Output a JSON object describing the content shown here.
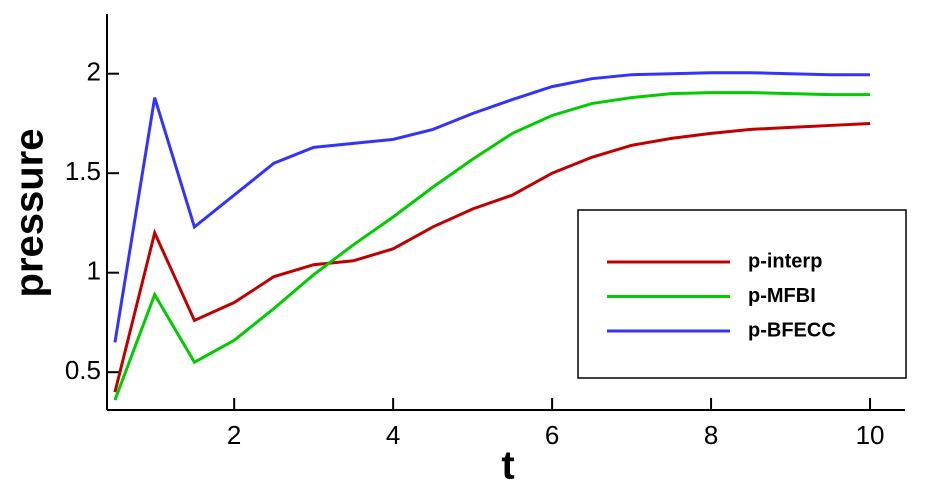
{
  "chart_data": {
    "type": "line",
    "x_label": "t",
    "y_label": "pressure",
    "x": [
      0.5,
      1,
      1.5,
      2,
      2.5,
      3,
      3.5,
      4,
      4.5,
      5,
      5.5,
      6,
      6.5,
      7,
      7.5,
      8,
      8.5,
      9,
      9.5,
      10
    ],
    "series": [
      {
        "name": "p-interp",
        "color": "#c00000",
        "values": [
          0.4,
          1.2,
          0.76,
          0.85,
          0.98,
          1.04,
          1.06,
          1.12,
          1.23,
          1.32,
          1.39,
          1.5,
          1.58,
          1.64,
          1.675,
          1.7,
          1.72,
          1.73,
          1.74,
          1.75
        ]
      },
      {
        "name": "p-MFBI",
        "color": "#00cc00",
        "values": [
          0.36,
          0.89,
          0.55,
          0.66,
          0.82,
          0.99,
          1.14,
          1.28,
          1.43,
          1.57,
          1.7,
          1.79,
          1.85,
          1.88,
          1.9,
          1.905,
          1.905,
          1.9,
          1.895,
          1.895
        ]
      },
      {
        "name": "p-BFECC",
        "color": "#3333ff",
        "values": [
          0.65,
          1.88,
          1.23,
          1.39,
          1.55,
          1.63,
          1.65,
          1.67,
          1.72,
          1.8,
          1.87,
          1.935,
          1.975,
          1.995,
          2.0,
          2.005,
          2.005,
          2.0,
          1.995,
          1.995
        ]
      }
    ],
    "xlim": [
      0.4,
      10.44
    ],
    "ylim": [
      0.31,
      2.3
    ],
    "xticks": [
      2,
      4,
      6,
      8,
      10
    ],
    "yticks": [
      0.5,
      1,
      1.5,
      2
    ],
    "legend": "lower right"
  }
}
